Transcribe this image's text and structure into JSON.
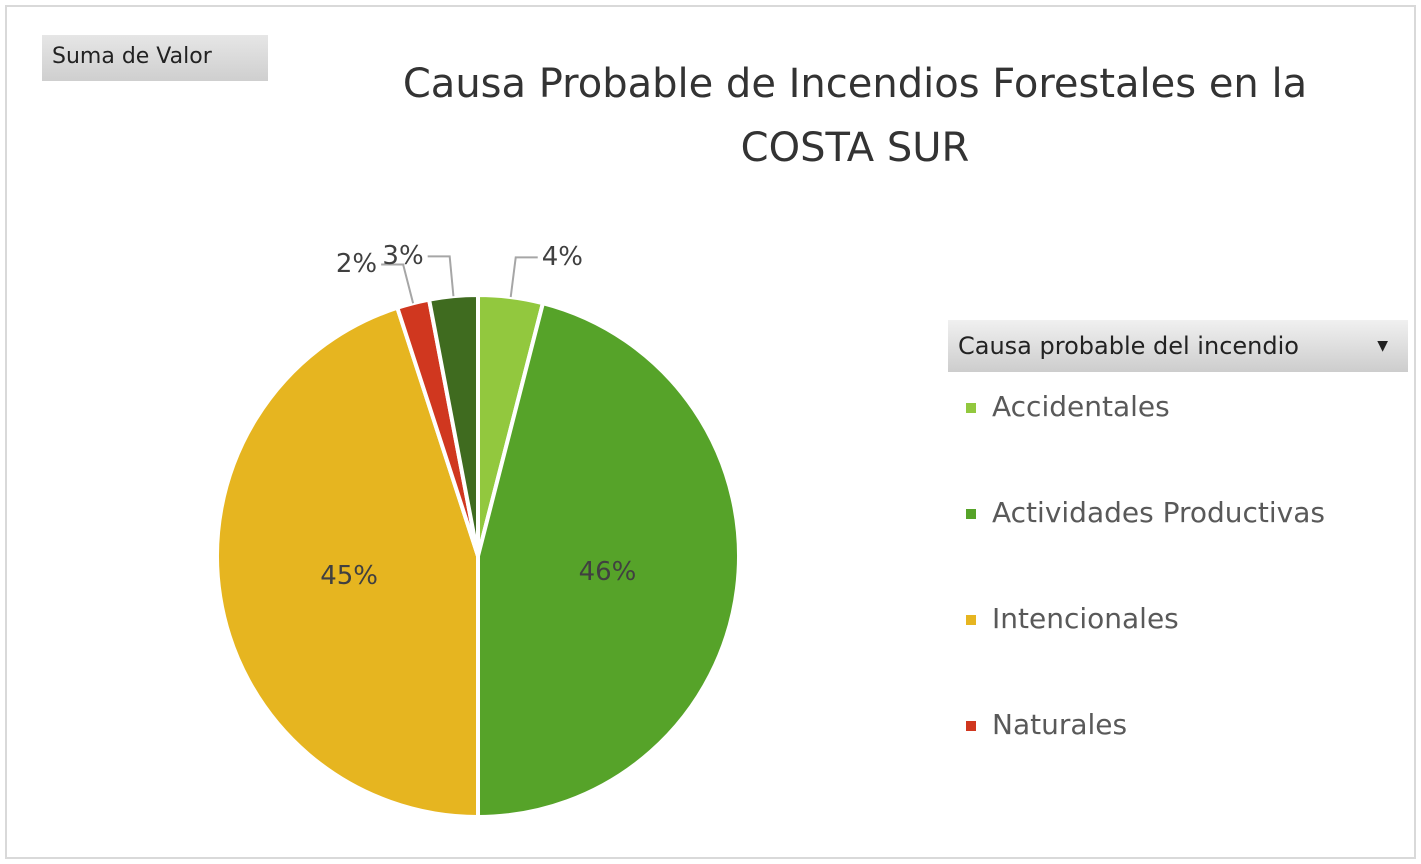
{
  "field_button": "Suma de Valor",
  "chart_data": {
    "type": "pie",
    "title": "Causa Probable de Incendios Forestales en la COSTA SUR",
    "legend_title": "Causa probable del incendio",
    "categories": [
      "Accidentales",
      "Actividades Productivas",
      "Intencionales",
      "Naturales",
      null
    ],
    "values": [
      4,
      46,
      45,
      2,
      3
    ],
    "value_labels": [
      "4%",
      "46%",
      "45%",
      "2%",
      "3%"
    ],
    "colors": [
      "#92c83e",
      "#56a329",
      "#e6b520",
      "#d0371f",
      "#3f6b1f"
    ],
    "legend": "right"
  }
}
